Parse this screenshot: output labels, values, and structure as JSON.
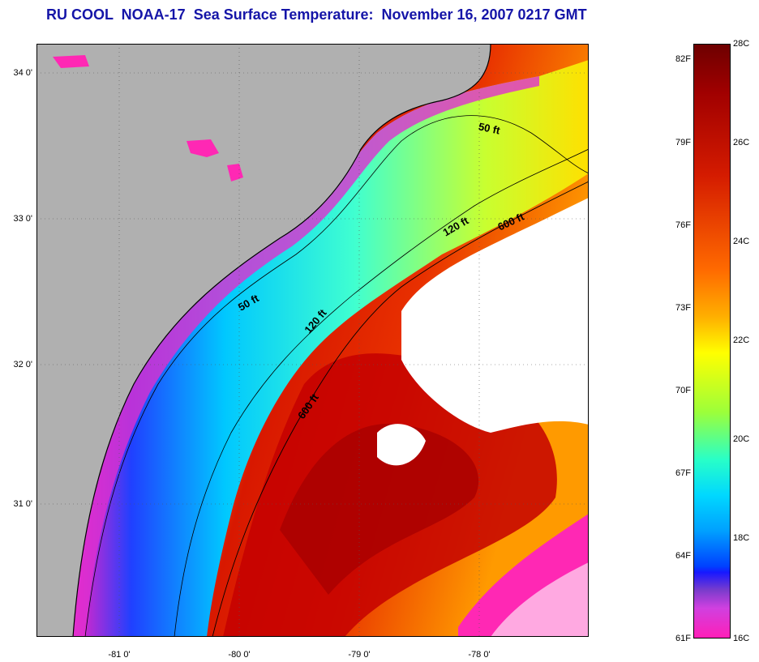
{
  "title": "RU COOL  NOAA-17  Sea Surface Temperature:  November 16, 2007 0217 GMT",
  "colors": {
    "land": "#b0b0b0",
    "cloud": "#ffffff",
    "title": "#1515a8",
    "gulfstream_core": "#c80000",
    "shelf_cold": "#00b0ff",
    "coast_cold": "#ff28b4"
  },
  "lat_labels": [
    "34 0'",
    "33 0'",
    "32 0'",
    "31 0'"
  ],
  "lon_labels": [
    "-81 0'",
    "-80 0'",
    "-79 0'",
    "-78 0'"
  ],
  "isobaths": {
    "fifty_a": "50 ft",
    "fifty_b": "50 ft",
    "onetwenty_a": "120 ft",
    "onetwenty_b": "120 ft",
    "sixhundred_a": "600 ft",
    "sixhundred_b": "600 ft"
  },
  "colorbar": {
    "fahrenheit": [
      "82F",
      "79F",
      "76F",
      "73F",
      "70F",
      "67F",
      "64F",
      "61F"
    ],
    "celsius": [
      "28C",
      "26C",
      "24C",
      "22C",
      "20C",
      "18C",
      "16C"
    ]
  }
}
